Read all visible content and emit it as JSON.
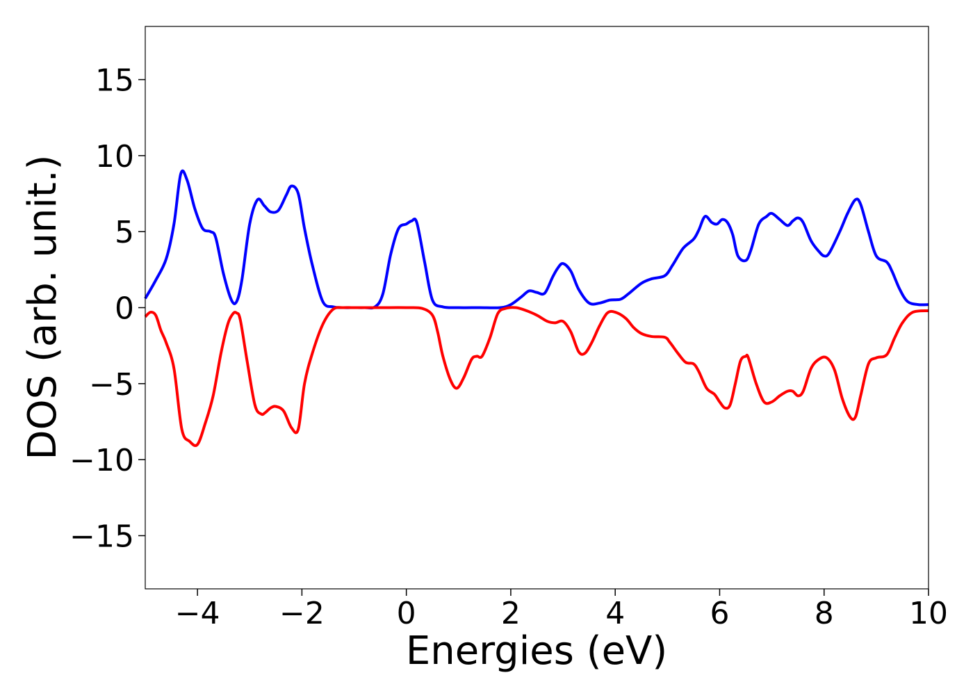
{
  "chart_data": {
    "type": "line",
    "title": "",
    "xlabel": "Energies (eV)",
    "ylabel": "DOS (arb. unit.)",
    "xlim": [
      -5,
      10
    ],
    "ylim": [
      -18.5,
      18.5
    ],
    "xticks": [
      -4,
      -2,
      0,
      2,
      4,
      6,
      8,
      10
    ],
    "yticks": [
      -15,
      -10,
      -5,
      0,
      5,
      10,
      15
    ],
    "xtick_labels": [
      "−4",
      "−2",
      "0",
      "2",
      "4",
      "6",
      "8",
      "10"
    ],
    "ytick_labels": [
      "−15",
      "−10",
      "−5",
      "0",
      "5",
      "10",
      "15"
    ],
    "grid": false,
    "legend": false,
    "series": [
      {
        "color": "#0000ff",
        "x": [
          -5,
          -4.8,
          -4.6,
          -4.45,
          -4.32,
          -4.2,
          -4.05,
          -3.9,
          -3.75,
          -3.65,
          -3.5,
          -3.35,
          -3.25,
          -3.15,
          -3.0,
          -2.85,
          -2.72,
          -2.6,
          -2.45,
          -2.3,
          -2.2,
          -2.07,
          -1.95,
          -1.8,
          -1.6,
          -1.4,
          -1.2,
          -1.0,
          -0.8,
          -0.6,
          -0.45,
          -0.3,
          -0.15,
          0.0,
          0.1,
          0.2,
          0.35,
          0.5,
          0.7,
          1.0,
          1.4,
          1.8,
          2.0,
          2.2,
          2.35,
          2.5,
          2.65,
          2.8,
          2.9,
          3.0,
          3.15,
          3.3,
          3.5,
          3.7,
          3.9,
          4.1,
          4.25,
          4.5,
          4.7,
          4.95,
          5.1,
          5.3,
          5.5,
          5.6,
          5.72,
          5.85,
          5.95,
          6.05,
          6.15,
          6.25,
          6.35,
          6.5,
          6.6,
          6.75,
          6.9,
          7.0,
          7.15,
          7.3,
          7.4,
          7.5,
          7.6,
          7.75,
          7.9,
          8.0,
          8.1,
          8.3,
          8.45,
          8.6,
          8.7,
          8.85,
          9.0,
          9.2,
          9.3,
          9.45,
          9.6,
          9.8,
          10.0
        ],
        "values": [
          0.6,
          1.8,
          3.2,
          5.5,
          8.8,
          8.4,
          6.5,
          5.2,
          5.0,
          4.6,
          2.2,
          0.5,
          0.4,
          1.8,
          5.5,
          7.1,
          6.7,
          6.3,
          6.4,
          7.4,
          8.0,
          7.5,
          5.2,
          2.8,
          0.4,
          0.05,
          0.0,
          0.0,
          0.0,
          0.05,
          0.9,
          3.5,
          5.2,
          5.5,
          5.7,
          5.6,
          3.0,
          0.5,
          0.05,
          0.0,
          0.0,
          0.0,
          0.2,
          0.7,
          1.1,
          1.0,
          0.95,
          2.0,
          2.6,
          2.9,
          2.4,
          1.2,
          0.3,
          0.3,
          0.5,
          0.55,
          0.9,
          1.6,
          1.9,
          2.1,
          2.8,
          3.9,
          4.5,
          5.1,
          6.0,
          5.6,
          5.5,
          5.8,
          5.6,
          4.8,
          3.4,
          3.1,
          3.8,
          5.5,
          6.0,
          6.2,
          5.8,
          5.4,
          5.7,
          5.9,
          5.6,
          4.4,
          3.7,
          3.4,
          3.6,
          5.0,
          6.2,
          7.1,
          6.8,
          5.0,
          3.4,
          3.0,
          2.4,
          1.2,
          0.4,
          0.2,
          0.2
        ]
      },
      {
        "color": "#ff0000",
        "x": [
          -5,
          -4.9,
          -4.8,
          -4.7,
          -4.6,
          -4.45,
          -4.3,
          -4.15,
          -4.0,
          -3.85,
          -3.7,
          -3.55,
          -3.42,
          -3.32,
          -3.25,
          -3.18,
          -3.05,
          -2.9,
          -2.78,
          -2.7,
          -2.6,
          -2.5,
          -2.35,
          -2.2,
          -2.07,
          -1.95,
          -1.8,
          -1.6,
          -1.4,
          -1.2,
          -1.0,
          -0.5,
          0.0,
          0.3,
          0.5,
          0.6,
          0.7,
          0.85,
          0.97,
          1.1,
          1.25,
          1.35,
          1.45,
          1.6,
          1.75,
          1.9,
          2.1,
          2.3,
          2.5,
          2.7,
          2.85,
          3.0,
          3.15,
          3.3,
          3.42,
          3.55,
          3.7,
          3.85,
          4.0,
          4.2,
          4.35,
          4.5,
          4.7,
          4.95,
          5.05,
          5.2,
          5.35,
          5.5,
          5.6,
          5.75,
          5.9,
          6.0,
          6.1,
          6.2,
          6.3,
          6.4,
          6.5,
          6.55,
          6.7,
          6.85,
          7.0,
          7.15,
          7.3,
          7.4,
          7.5,
          7.6,
          7.75,
          7.9,
          8.05,
          8.2,
          8.35,
          8.5,
          8.6,
          8.7,
          8.85,
          9.0,
          9.2,
          9.35,
          9.5,
          9.7,
          10.0
        ],
        "values": [
          -0.6,
          -0.3,
          -0.5,
          -1.5,
          -2.3,
          -4.0,
          -8.0,
          -8.8,
          -9.0,
          -7.6,
          -5.8,
          -3.0,
          -1.1,
          -0.4,
          -0.35,
          -0.8,
          -3.5,
          -6.4,
          -7.0,
          -6.9,
          -6.6,
          -6.5,
          -6.8,
          -7.9,
          -8.0,
          -5.0,
          -3.0,
          -1.1,
          -0.1,
          0.0,
          0.0,
          0.0,
          0.0,
          -0.05,
          -0.5,
          -1.6,
          -3.2,
          -4.8,
          -5.3,
          -4.6,
          -3.4,
          -3.2,
          -3.2,
          -2.0,
          -0.4,
          -0.05,
          0.0,
          -0.2,
          -0.5,
          -0.9,
          -1.0,
          -0.9,
          -1.6,
          -2.9,
          -3.0,
          -2.3,
          -1.2,
          -0.35,
          -0.3,
          -0.7,
          -1.3,
          -1.7,
          -1.9,
          -1.95,
          -2.3,
          -3.0,
          -3.6,
          -3.7,
          -4.2,
          -5.3,
          -5.7,
          -6.2,
          -6.6,
          -6.4,
          -5.0,
          -3.5,
          -3.2,
          -3.3,
          -5.0,
          -6.2,
          -6.2,
          -5.8,
          -5.5,
          -5.5,
          -5.8,
          -5.5,
          -4.0,
          -3.4,
          -3.3,
          -4.1,
          -6.0,
          -7.2,
          -7.2,
          -5.8,
          -3.7,
          -3.3,
          -3.1,
          -2.0,
          -1.0,
          -0.3,
          -0.2
        ]
      }
    ]
  }
}
